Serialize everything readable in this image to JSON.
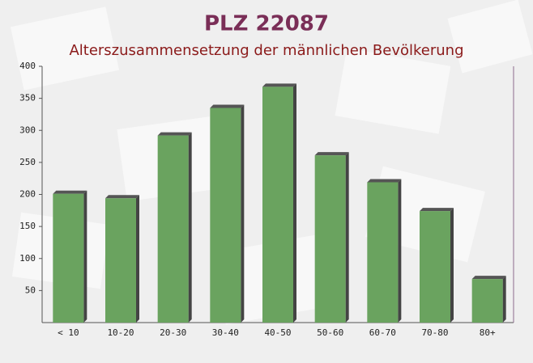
{
  "chart_data": {
    "type": "bar",
    "title": "PLZ 22087",
    "subtitle": "Alterszusammensetzung der männlichen Bevölkerung",
    "categories": [
      "< 10",
      "10-20",
      "20-30",
      "30-40",
      "40-50",
      "50-60",
      "60-70",
      "70-80",
      "80+"
    ],
    "values": [
      201,
      194,
      292,
      335,
      368,
      261,
      219,
      174,
      68
    ],
    "color": "#6aa35f",
    "ylim": [
      0,
      400
    ],
    "yticks": [
      50,
      100,
      150,
      200,
      250,
      300,
      350,
      400
    ]
  }
}
